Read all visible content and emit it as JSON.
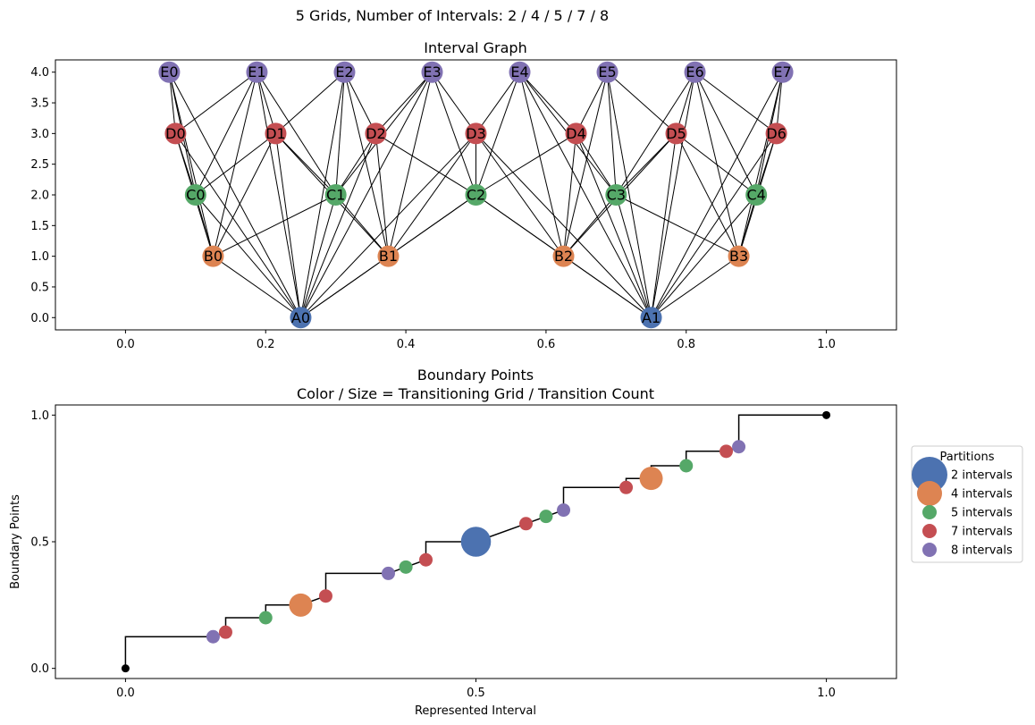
{
  "suptitle": "5 Grids, Number of Intervals: 2 / 4 / 5 / 7 / 8",
  "colors": {
    "A": "#4c72b0",
    "B": "#dd8452",
    "C": "#55a868",
    "D": "#c44e52",
    "E": "#8172b3",
    "edge": "#000000",
    "endpoint": "#000000"
  },
  "chart_data": [
    {
      "type": "network",
      "title": "Interval Graph",
      "xlim": [
        -0.1,
        1.1
      ],
      "ylim": [
        -0.2,
        4.2
      ],
      "xticks": [
        0.0,
        0.2,
        0.4,
        0.6,
        0.8,
        1.0
      ],
      "xtick_labels": [
        "0.0",
        "0.2",
        "0.4",
        "0.6",
        "0.8",
        "1.0"
      ],
      "yticks": [
        0,
        0.5,
        1,
        1.5,
        2,
        2.5,
        3,
        3.5,
        4
      ],
      "ytick_labels": [
        "0.0",
        "0.5",
        "1.0",
        "1.5",
        "2.0",
        "2.5",
        "3.0",
        "3.5",
        "4.0"
      ],
      "grids": [
        {
          "group": "A",
          "level": 0,
          "intervals": 2
        },
        {
          "group": "B",
          "level": 1,
          "intervals": 4
        },
        {
          "group": "C",
          "level": 2,
          "intervals": 5
        },
        {
          "group": "D",
          "level": 3,
          "intervals": 7
        },
        {
          "group": "E",
          "level": 4,
          "intervals": 8
        }
      ],
      "nodes": [
        {
          "label": "A0",
          "x": 0.25,
          "y": 0
        },
        {
          "label": "A1",
          "x": 0.75,
          "y": 0
        },
        {
          "label": "B0",
          "x": 0.125,
          "y": 1
        },
        {
          "label": "B1",
          "x": 0.375,
          "y": 1
        },
        {
          "label": "B2",
          "x": 0.625,
          "y": 1
        },
        {
          "label": "B3",
          "x": 0.875,
          "y": 1
        },
        {
          "label": "C0",
          "x": 0.1,
          "y": 2
        },
        {
          "label": "C1",
          "x": 0.3,
          "y": 2
        },
        {
          "label": "C2",
          "x": 0.5,
          "y": 2
        },
        {
          "label": "C3",
          "x": 0.7,
          "y": 2
        },
        {
          "label": "C4",
          "x": 0.9,
          "y": 2
        },
        {
          "label": "D0",
          "x": 0.0714,
          "y": 3
        },
        {
          "label": "D1",
          "x": 0.2143,
          "y": 3
        },
        {
          "label": "D2",
          "x": 0.3571,
          "y": 3
        },
        {
          "label": "D3",
          "x": 0.5,
          "y": 3
        },
        {
          "label": "D4",
          "x": 0.6429,
          "y": 3
        },
        {
          "label": "D5",
          "x": 0.7857,
          "y": 3
        },
        {
          "label": "D6",
          "x": 0.9286,
          "y": 3
        },
        {
          "label": "E0",
          "x": 0.0625,
          "y": 4
        },
        {
          "label": "E1",
          "x": 0.1875,
          "y": 4
        },
        {
          "label": "E2",
          "x": 0.3125,
          "y": 4
        },
        {
          "label": "E3",
          "x": 0.4375,
          "y": 4
        },
        {
          "label": "E4",
          "x": 0.5625,
          "y": 4
        },
        {
          "label": "E5",
          "x": 0.6875,
          "y": 4
        },
        {
          "label": "E6",
          "x": 0.8125,
          "y": 4
        },
        {
          "label": "E7",
          "x": 0.9375,
          "y": 4
        }
      ],
      "edges": "intervals that overlap in their represented range are connected"
    },
    {
      "type": "step-scatter",
      "title": "Boundary Points",
      "subtitle": "Color / Size = Transitioning Grid / Transition Count",
      "xlabel": "Represented Interval",
      "ylabel": "Boundary Points",
      "xlim": [
        -0.1,
        1.1
      ],
      "ylim": [
        -0.04,
        1.04
      ],
      "xticks": [
        0.0,
        0.5,
        1.0
      ],
      "xtick_labels": [
        "0.0",
        "0.5",
        "1.0"
      ],
      "yticks": [
        0.0,
        0.5,
        1.0
      ],
      "ytick_labels": [
        "0.0",
        "0.5",
        "1.0"
      ],
      "step": [
        {
          "x": 0.0,
          "y": 0.0
        },
        {
          "x": 0.0,
          "y": 0.125
        },
        {
          "x": 0.125,
          "y": 0.125
        },
        {
          "x": 0.1429,
          "y": 0.1429
        },
        {
          "x": 0.1429,
          "y": 0.2
        },
        {
          "x": 0.2,
          "y": 0.2
        },
        {
          "x": 0.2,
          "y": 0.25
        },
        {
          "x": 0.25,
          "y": 0.25
        },
        {
          "x": 0.2857,
          "y": 0.2857
        },
        {
          "x": 0.2857,
          "y": 0.375
        },
        {
          "x": 0.375,
          "y": 0.375
        },
        {
          "x": 0.4,
          "y": 0.4
        },
        {
          "x": 0.4286,
          "y": 0.4286
        },
        {
          "x": 0.4286,
          "y": 0.5
        },
        {
          "x": 0.5,
          "y": 0.5
        },
        {
          "x": 0.5714,
          "y": 0.5714
        },
        {
          "x": 0.5714,
          "y": 0.5714
        },
        {
          "x": 0.6,
          "y": 0.6
        },
        {
          "x": 0.625,
          "y": 0.625
        },
        {
          "x": 0.625,
          "y": 0.7143
        },
        {
          "x": 0.7143,
          "y": 0.7143
        },
        {
          "x": 0.7143,
          "y": 0.75
        },
        {
          "x": 0.75,
          "y": 0.75
        },
        {
          "x": 0.75,
          "y": 0.8
        },
        {
          "x": 0.8,
          "y": 0.8
        },
        {
          "x": 0.8,
          "y": 0.8571
        },
        {
          "x": 0.8571,
          "y": 0.8571
        },
        {
          "x": 0.875,
          "y": 0.875
        },
        {
          "x": 0.875,
          "y": 1.0
        },
        {
          "x": 1.0,
          "y": 1.0
        }
      ],
      "endpoints": [
        {
          "x": 0.0,
          "y": 0.0
        },
        {
          "x": 1.0,
          "y": 1.0
        }
      ],
      "points": [
        {
          "x": 0.125,
          "y": 0.125,
          "group": "E",
          "count": 1
        },
        {
          "x": 0.1429,
          "y": 0.1429,
          "group": "D",
          "count": 1
        },
        {
          "x": 0.2,
          "y": 0.2,
          "group": "C",
          "count": 1
        },
        {
          "x": 0.25,
          "y": 0.25,
          "group": "B",
          "count": 3
        },
        {
          "x": 0.2857,
          "y": 0.2857,
          "group": "D",
          "count": 1
        },
        {
          "x": 0.375,
          "y": 0.375,
          "group": "E",
          "count": 1
        },
        {
          "x": 0.4,
          "y": 0.4,
          "group": "C",
          "count": 1
        },
        {
          "x": 0.4286,
          "y": 0.4286,
          "group": "D",
          "count": 1
        },
        {
          "x": 0.5,
          "y": 0.5,
          "group": "A",
          "count": 5
        },
        {
          "x": 0.5714,
          "y": 0.5714,
          "group": "D",
          "count": 1
        },
        {
          "x": 0.6,
          "y": 0.6,
          "group": "C",
          "count": 1
        },
        {
          "x": 0.625,
          "y": 0.625,
          "group": "E",
          "count": 1
        },
        {
          "x": 0.7143,
          "y": 0.7143,
          "group": "D",
          "count": 1
        },
        {
          "x": 0.75,
          "y": 0.75,
          "group": "B",
          "count": 3
        },
        {
          "x": 0.8,
          "y": 0.8,
          "group": "C",
          "count": 1
        },
        {
          "x": 0.8571,
          "y": 0.8571,
          "group": "D",
          "count": 1
        },
        {
          "x": 0.875,
          "y": 0.875,
          "group": "E",
          "count": 1
        }
      ],
      "legend": {
        "title": "Partitions",
        "placement": "outside right",
        "entries": [
          {
            "label": "2 intervals",
            "group": "A"
          },
          {
            "label": "4 intervals",
            "group": "B"
          },
          {
            "label": "5 intervals",
            "group": "C"
          },
          {
            "label": "7 intervals",
            "group": "D"
          },
          {
            "label": "8 intervals",
            "group": "E"
          }
        ]
      }
    }
  ]
}
